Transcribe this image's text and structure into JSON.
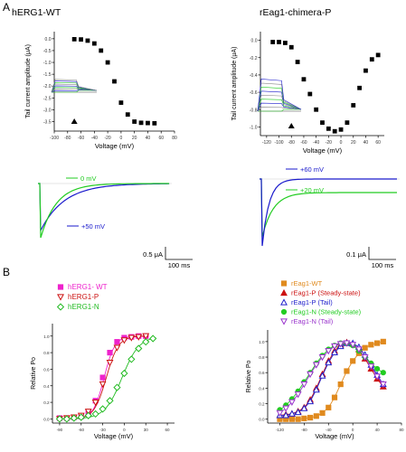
{
  "panel_labels": {
    "a": "A",
    "b": "B"
  },
  "chart_data": [
    {
      "id": "herg_iv",
      "type": "scatter",
      "title": "hERG1-WT",
      "xlabel": "Voltage (mV)",
      "ylabel": "Tail current amplitude (μA)",
      "xticks": [
        "-100",
        "-80",
        "-60",
        "-40",
        "-20",
        "0",
        "20",
        "40",
        "60",
        "80"
      ],
      "yticks": [
        "0.0",
        "-0.5",
        "-1.0",
        "-1.5",
        "-2.0",
        "-2.5",
        "-3.0",
        "-3.5"
      ],
      "xlim": [
        -100,
        80
      ],
      "ylim": [
        -3.9,
        0.3
      ],
      "x": [
        -70,
        -60,
        -50,
        -40,
        -30,
        -20,
        -10,
        0,
        10,
        20,
        30,
        40,
        50
      ],
      "y": [
        -0.02,
        -0.03,
        -0.08,
        -0.2,
        -0.5,
        -1.0,
        -1.8,
        -2.7,
        -3.2,
        -3.5,
        -3.55,
        -3.56,
        -3.57
      ],
      "marker_x": -70,
      "color": "#000000"
    },
    {
      "id": "eag_iv",
      "type": "scatter",
      "title": "rEag1-chimera-P",
      "xlabel": "Voltage (mV)",
      "ylabel": "Tail current amplitude (μA)",
      "xticks": [
        "-120",
        "-100",
        "-80",
        "-60",
        "-40",
        "-20",
        "0",
        "20",
        "40",
        "60"
      ],
      "yticks": [
        "0.0",
        "-0.2",
        "-0.4",
        "-0.6",
        "-0.8",
        "-1.0"
      ],
      "xlim": [
        -130,
        70
      ],
      "ylim": [
        -1.1,
        0.1
      ],
      "x": [
        -110,
        -100,
        -90,
        -80,
        -70,
        -60,
        -50,
        -40,
        -30,
        -20,
        -10,
        0,
        10,
        20,
        30,
        40,
        50,
        60
      ],
      "y": [
        -0.02,
        -0.02,
        -0.03,
        -0.08,
        -0.25,
        -0.45,
        -0.62,
        -0.8,
        -0.95,
        -1.02,
        -1.05,
        -1.03,
        -0.95,
        -0.75,
        -0.55,
        -0.35,
        -0.22,
        -0.17
      ],
      "marker_x": -80,
      "color": "#000000"
    },
    {
      "id": "herg_pr",
      "type": "line",
      "xlabel": "Voltage (mV)",
      "ylabel": "Relative Po",
      "xticks": [
        "-90",
        "-60",
        "-30",
        "0",
        "30",
        "60"
      ],
      "yticks": [
        "0.0",
        "0.2",
        "0.4",
        "0.6",
        "0.8",
        "1.0"
      ],
      "xlim": [
        -100,
        70
      ],
      "ylim": [
        -0.05,
        1.15
      ],
      "legend": "top-right",
      "series": [
        {
          "name": "hERG1- WT",
          "marker": "square-filled",
          "color": "#ee22cc",
          "v_half": -28,
          "slope": 7.5,
          "x": [
            -90,
            -80,
            -70,
            -60,
            -50,
            -40,
            -30,
            -20,
            -10,
            0,
            10,
            20,
            30
          ],
          "y": [
            0.01,
            0.01,
            0.02,
            0.03,
            0.08,
            0.22,
            0.5,
            0.8,
            0.93,
            0.98,
            0.99,
            1.0,
            1.0
          ]
        },
        {
          "name": "hERG1-P",
          "marker": "triangle-down-open",
          "color": "#cc1111",
          "v_half": -25,
          "slope": 8.5,
          "x": [
            -90,
            -80,
            -70,
            -60,
            -50,
            -40,
            -30,
            -20,
            -10,
            0,
            10,
            20,
            30
          ],
          "y": [
            0.0,
            0.01,
            0.02,
            0.04,
            0.09,
            0.2,
            0.42,
            0.68,
            0.86,
            0.95,
            0.98,
            0.99,
            1.0
          ]
        },
        {
          "name": "hERG1-N",
          "marker": "diamond-open",
          "color": "#22bb22",
          "v_half": -3,
          "slope": 12,
          "x": [
            -90,
            -80,
            -70,
            -60,
            -50,
            -40,
            -30,
            -20,
            -10,
            0,
            10,
            20,
            30,
            40
          ],
          "y": [
            0.0,
            0.0,
            0.01,
            0.02,
            0.04,
            0.06,
            0.12,
            0.22,
            0.38,
            0.55,
            0.72,
            0.85,
            0.93,
            0.97
          ]
        }
      ]
    },
    {
      "id": "eag_pr",
      "type": "line",
      "xlabel": "Voltage (mV)",
      "ylabel": "Relative Po",
      "xticks": [
        "-120",
        "-80",
        "-40",
        "0",
        "40",
        "80"
      ],
      "yticks": [
        "0.0",
        "0.2",
        "0.4",
        "0.6",
        "0.8",
        "1.0"
      ],
      "xlim": [
        -140,
        80
      ],
      "ylim": [
        -0.05,
        1.15
      ],
      "legend": "top-right",
      "series": [
        {
          "name": "rEag1-WT",
          "marker": "square-filled",
          "color": "#e08a1e",
          "x": [
            -120,
            -110,
            -100,
            -90,
            -80,
            -70,
            -60,
            -50,
            -40,
            -30,
            -20,
            -10,
            0,
            10,
            20,
            30,
            40,
            50
          ],
          "y": [
            0.0,
            0.0,
            0.0,
            0.0,
            0.01,
            0.02,
            0.04,
            0.08,
            0.15,
            0.28,
            0.45,
            0.62,
            0.75,
            0.85,
            0.92,
            0.96,
            0.98,
            1.0
          ]
        },
        {
          "name": "rEag1-P (Steady-state)",
          "marker": "triangle-up-filled",
          "color": "#cc1111",
          "x": [
            -120,
            -110,
            -100,
            -90,
            -80,
            -70,
            -60,
            -50,
            -40,
            -30,
            -20,
            -10,
            0,
            10,
            20,
            30,
            40,
            50
          ],
          "y": [
            0.05,
            0.06,
            0.07,
            0.1,
            0.15,
            0.25,
            0.4,
            0.58,
            0.75,
            0.88,
            0.96,
            0.99,
            0.97,
            0.9,
            0.78,
            0.65,
            0.52,
            0.42
          ]
        },
        {
          "name": "rEag1-P (Tail)",
          "marker": "triangle-up-open",
          "color": "#2222cc",
          "x": [
            -120,
            -110,
            -100,
            -90,
            -80,
            -70,
            -60,
            -50,
            -40,
            -30,
            -20,
            -10,
            0,
            10,
            20,
            30,
            40,
            50
          ],
          "y": [
            0.05,
            0.05,
            0.07,
            0.09,
            0.14,
            0.23,
            0.38,
            0.56,
            0.73,
            0.86,
            0.94,
            0.98,
            0.98,
            0.93,
            0.83,
            0.7,
            0.57,
            0.45
          ]
        },
        {
          "name": "rEag1-N (Steady-state)",
          "marker": "circle-filled",
          "color": "#22cc22",
          "x": [
            -120,
            -110,
            -100,
            -90,
            -80,
            -70,
            -60,
            -50,
            -40,
            -30,
            -20,
            -10,
            0,
            10,
            20,
            30,
            40,
            50
          ],
          "y": [
            0.12,
            0.18,
            0.26,
            0.36,
            0.48,
            0.6,
            0.72,
            0.82,
            0.9,
            0.95,
            0.98,
            0.98,
            0.95,
            0.88,
            0.8,
            0.72,
            0.65,
            0.6
          ]
        },
        {
          "name": "rEag1-N (Tail)",
          "marker": "triangle-down-open",
          "color": "#9933cc",
          "x": [
            -120,
            -110,
            -100,
            -90,
            -80,
            -70,
            -60,
            -50,
            -40,
            -30,
            -20,
            -10,
            0,
            10,
            20,
            30,
            40,
            50
          ],
          "y": [
            0.08,
            0.14,
            0.22,
            0.32,
            0.45,
            0.58,
            0.7,
            0.8,
            0.88,
            0.94,
            0.97,
            0.98,
            0.96,
            0.9,
            0.8,
            0.68,
            0.55,
            0.45
          ]
        }
      ]
    }
  ],
  "traces": {
    "herg": {
      "labels": {
        "upper": "0 mV",
        "lower": "+50 mV"
      },
      "scale": {
        "amp": "0.5 μA",
        "time": "100 ms"
      },
      "colors": {
        "upper": "#22cc22",
        "lower": "#1a1acc"
      }
    },
    "eag": {
      "labels": {
        "upper": "+60 mV",
        "lower": "+20 mV"
      },
      "scale": {
        "amp": "0.1 μA",
        "time": "100 ms"
      },
      "colors": {
        "upper": "#1a1acc",
        "lower": "#22cc22"
      }
    }
  }
}
